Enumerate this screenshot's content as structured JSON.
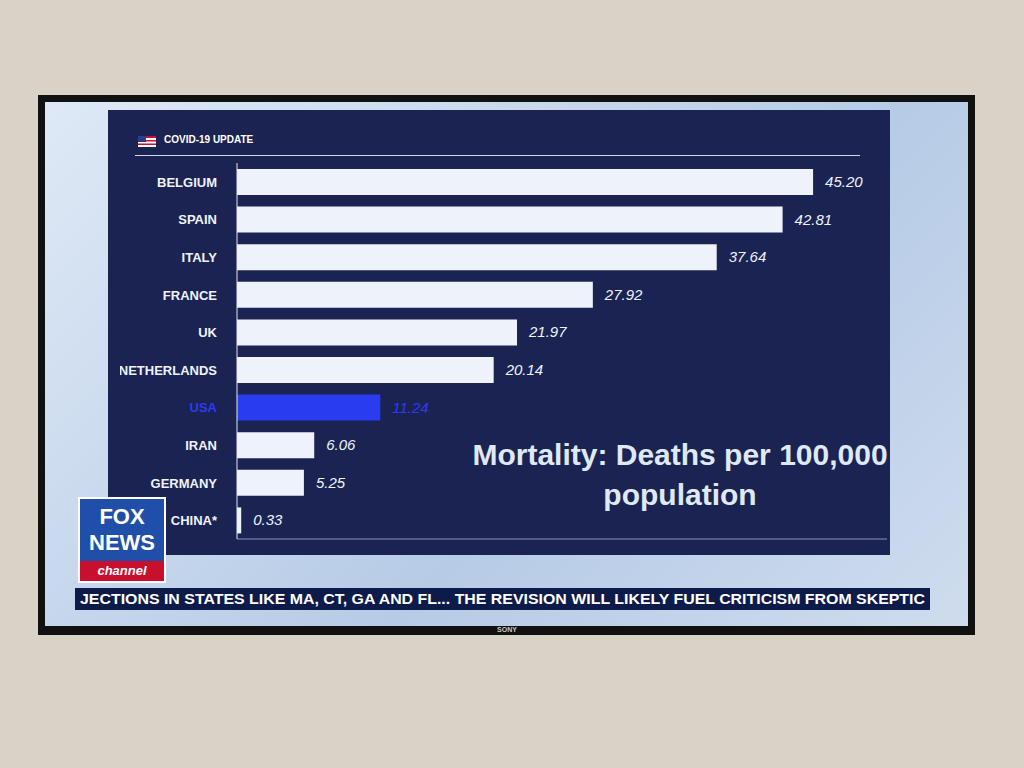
{
  "chart_data": {
    "type": "bar",
    "orientation": "horizontal",
    "title": "COVID-19 UPDATE",
    "annotation": "Mortality: Deaths per 100,000 population",
    "categories": [
      "BELGIUM",
      "SPAIN",
      "ITALY",
      "FRANCE",
      "UK",
      "NETHERLANDS",
      "USA",
      "IRAN",
      "GERMANY",
      "CHINA*"
    ],
    "values": [
      45.2,
      42.81,
      37.64,
      27.92,
      21.97,
      20.14,
      11.24,
      6.06,
      5.25,
      0.33
    ],
    "value_labels": [
      "45.20",
      "42.81",
      "37.64",
      "27.92",
      "21.97",
      "20.14",
      "11.24",
      "6.06",
      "5.25",
      "0.33"
    ],
    "colors": [
      "#eef3fb",
      "#eef3fb",
      "#eef3fb",
      "#eef3fb",
      "#eef3fb",
      "#eef3fb",
      "#2a3cf0",
      "#eef3fb",
      "#eef3fb",
      "#eef3fb"
    ],
    "xlim": [
      0,
      51
    ],
    "data_labels": true,
    "tick_labels": "y",
    "grid": false
  },
  "logo": {
    "text": "FOX NEWS",
    "subtext": "channel"
  },
  "ticker": "JECTIONS IN STATES LIKE MA, CT, GA AND FL...   THE REVISION WILL LIKELY FUEL CRITICISM FROM SKEPTIC",
  "tv_brand": "SONY"
}
